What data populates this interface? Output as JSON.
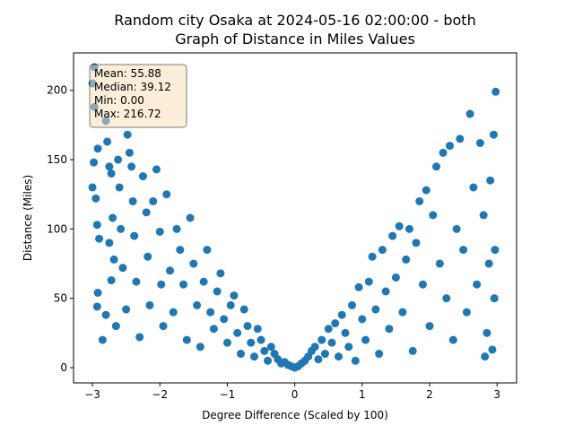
{
  "chart_data": {
    "type": "scatter",
    "title_lines": [
      "Random city Osaka at 2024-05-16 02:00:00  - both",
      "Graph of Distance in Miles Values"
    ],
    "x_label": "Degree Difference (Scaled by 100)",
    "y_label": "Distance (Miles)",
    "annotation_lines": [
      "Mean: 55.88",
      "Median: 39.12",
      "Min: 0.00",
      "Max: 216.72"
    ],
    "xlim": [
      -3.28,
      3.29
    ],
    "ylim": [
      -11,
      227
    ],
    "xticks": [
      {
        "value": -3,
        "label": "−3"
      },
      {
        "value": -2,
        "label": "−2"
      },
      {
        "value": -1,
        "label": "−1"
      },
      0,
      1,
      2,
      3
    ],
    "yticks": [
      0,
      50,
      100,
      150,
      200
    ],
    "grid": false,
    "series": [
      {
        "color": "#1f77b4",
        "x": [
          -2.97,
          -3.0,
          -2.97,
          -2.92,
          -2.98,
          -3.0,
          -2.95,
          -2.93,
          -2.9,
          -2.85,
          -2.92,
          -2.93,
          -2.8,
          -2.78,
          -2.75,
          -2.72,
          -2.7,
          -2.68,
          -2.75,
          -2.8,
          -2.72,
          -2.65,
          -2.62,
          -2.6,
          -2.58,
          -2.55,
          -2.5,
          -2.48,
          -2.45,
          -2.42,
          -2.4,
          -2.38,
          -2.35,
          -2.3,
          -2.25,
          -2.2,
          -2.18,
          -2.15,
          -2.1,
          -2.05,
          -2.0,
          -1.98,
          -1.95,
          -1.9,
          -1.85,
          -1.8,
          -1.75,
          -1.7,
          -1.65,
          -1.6,
          -1.55,
          -1.5,
          -1.45,
          -1.4,
          -1.35,
          -1.3,
          -1.25,
          -1.2,
          -1.15,
          -1.1,
          -1.05,
          -1.0,
          -0.95,
          -0.9,
          -0.85,
          -0.8,
          -0.75,
          -0.7,
          -0.65,
          -0.6,
          -0.55,
          -0.5,
          -0.45,
          -0.4,
          -0.35,
          -0.3,
          -0.25,
          -0.2,
          -0.15,
          -0.1,
          -0.05,
          0.0,
          0.05,
          0.1,
          0.15,
          0.2,
          0.25,
          0.3,
          0.35,
          0.4,
          0.45,
          0.5,
          0.55,
          0.6,
          0.65,
          0.7,
          0.75,
          0.8,
          0.85,
          0.9,
          0.95,
          1.0,
          1.05,
          1.1,
          1.15,
          1.2,
          1.25,
          1.3,
          1.35,
          1.4,
          1.45,
          1.5,
          1.55,
          1.6,
          1.65,
          1.7,
          1.75,
          1.8,
          1.85,
          1.9,
          1.95,
          2.0,
          2.05,
          2.1,
          2.15,
          2.2,
          2.25,
          2.3,
          2.35,
          2.4,
          2.45,
          2.5,
          2.55,
          2.6,
          2.65,
          2.7,
          2.75,
          2.8,
          2.85,
          2.9,
          2.95,
          2.98,
          2.97,
          2.96,
          2.93,
          2.88,
          2.82
        ],
        "values": [
          216.72,
          205,
          188,
          158,
          148,
          130,
          122,
          103,
          93,
          20,
          54,
          44,
          178,
          163,
          145,
          140,
          108,
          78,
          90,
          38,
          63,
          30,
          150,
          130,
          100,
          72,
          42,
          168,
          155,
          145,
          120,
          95,
          62,
          22,
          138,
          112,
          80,
          45,
          120,
          143,
          98,
          60,
          30,
          125,
          70,
          40,
          100,
          85,
          60,
          20,
          108,
          75,
          45,
          15,
          62,
          85,
          40,
          28,
          55,
          68,
          35,
          18,
          45,
          52,
          25,
          10,
          42,
          30,
          18,
          8,
          28,
          20,
          12,
          5,
          15,
          10,
          6,
          3,
          4,
          2,
          1,
          0,
          1,
          3,
          5,
          8,
          12,
          15,
          6,
          20,
          10,
          28,
          18,
          32,
          8,
          38,
          25,
          15,
          45,
          5,
          58,
          35,
          20,
          62,
          80,
          42,
          10,
          85,
          55,
          28,
          95,
          65,
          102,
          40,
          78,
          100,
          12,
          90,
          120,
          60,
          128,
          30,
          110,
          145,
          75,
          155,
          50,
          160,
          20,
          100,
          165,
          85,
          40,
          183,
          130,
          60,
          162,
          110,
          25,
          135,
          168,
          199,
          85,
          50,
          13,
          75,
          8
        ]
      }
    ]
  }
}
